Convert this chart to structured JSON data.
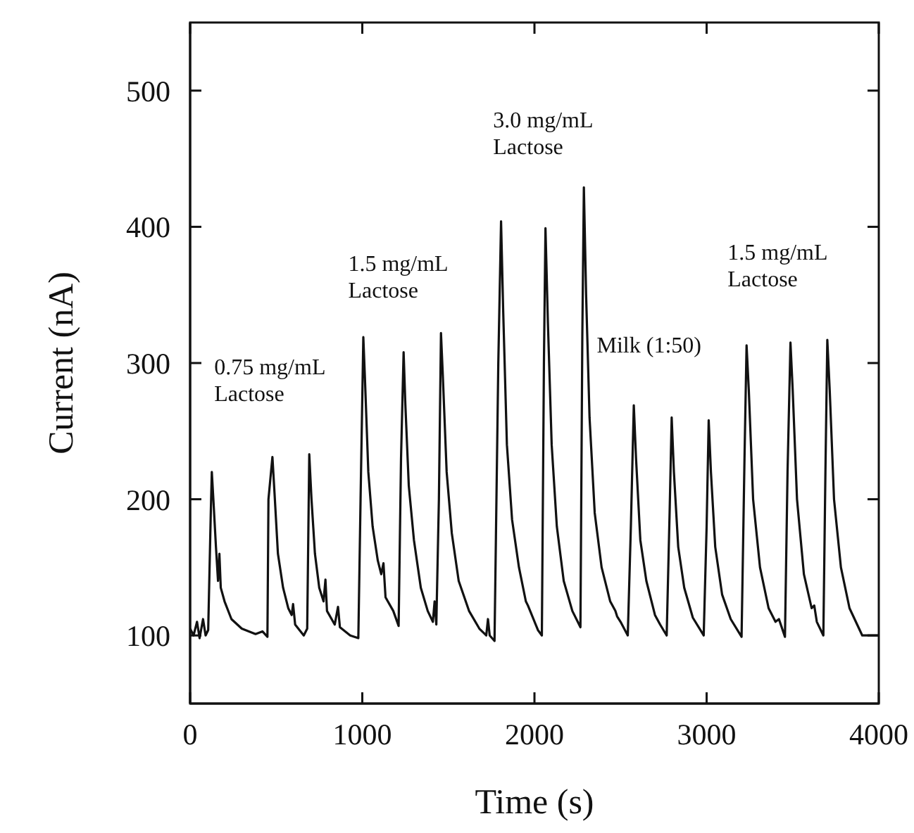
{
  "chart_data": {
    "type": "line",
    "xlabel": "Time (s)",
    "ylabel": "Current (nA)",
    "xlim": [
      0,
      4000
    ],
    "xticks": [
      0,
      1000,
      2000,
      3000,
      4000
    ],
    "ylim": [
      50,
      550
    ],
    "yticks": [
      100,
      200,
      300,
      400,
      500
    ],
    "grid": false,
    "legend": false,
    "marker": "none",
    "line_style": "solid",
    "series": [
      {
        "color": "#111111",
        "x": [
          0,
          20,
          40,
          55,
          75,
          90,
          105,
          120,
          126,
          135,
          150,
          162,
          170,
          178,
          200,
          240,
          300,
          380,
          420,
          449,
          455,
          478,
          490,
          510,
          540,
          570,
          590,
          598,
          610,
          660,
          680,
          692,
          705,
          725,
          750,
          775,
          786,
          795,
          840,
          859,
          870,
          930,
          977,
          990,
          1006,
          1015,
          1035,
          1060,
          1090,
          1110,
          1123,
          1135,
          1180,
          1211,
          1225,
          1240,
          1250,
          1270,
          1300,
          1340,
          1380,
          1410,
          1420,
          1430,
          1445,
          1457,
          1468,
          1490,
          1520,
          1560,
          1620,
          1680,
          1720,
          1730,
          1740,
          1768,
          1790,
          1806,
          1818,
          1840,
          1870,
          1910,
          1950,
          1962,
          1975,
          2020,
          2043,
          2055,
          2064,
          2078,
          2100,
          2130,
          2170,
          2220,
          2267,
          2278,
          2287,
          2300,
          2320,
          2350,
          2390,
          2440,
          2470,
          2480,
          2500,
          2542,
          2560,
          2577,
          2590,
          2615,
          2650,
          2700,
          2730,
          2768,
          2785,
          2797,
          2810,
          2835,
          2870,
          2920,
          2983,
          3000,
          3012,
          3025,
          3050,
          3090,
          3140,
          3203,
          3220,
          3232,
          3245,
          3270,
          3310,
          3360,
          3400,
          3420,
          3455,
          3470,
          3487,
          3500,
          3525,
          3565,
          3610,
          3625,
          3640,
          3678,
          3690,
          3701,
          3715,
          3740,
          3780,
          3830,
          3904,
          4000
        ],
        "values": [
          105,
          100,
          110,
          98,
          112,
          100,
          104,
          190,
          220,
          200,
          165,
          140,
          160,
          135,
          125,
          112,
          105,
          101,
          103,
          99,
          200,
          231,
          205,
          160,
          135,
          120,
          115,
          123,
          108,
          100,
          105,
          233,
          200,
          160,
          135,
          125,
          141,
          118,
          108,
          121,
          106,
          100,
          98,
          200,
          319,
          290,
          220,
          180,
          155,
          145,
          153,
          128,
          118,
          107,
          230,
          308,
          270,
          210,
          170,
          135,
          118,
          110,
          125,
          108,
          200,
          322,
          290,
          220,
          175,
          140,
          118,
          105,
          100,
          112,
          100,
          96,
          300,
          404,
          340,
          240,
          185,
          150,
          125,
          122,
          118,
          104,
          100,
          300,
          399,
          330,
          240,
          180,
          140,
          118,
          106,
          320,
          429,
          350,
          260,
          190,
          150,
          125,
          118,
          114,
          110,
          100,
          180,
          269,
          230,
          170,
          140,
          115,
          108,
          100,
          190,
          260,
          220,
          165,
          135,
          113,
          100,
          180,
          258,
          220,
          165,
          130,
          112,
          99,
          230,
          313,
          280,
          200,
          150,
          120,
          110,
          112,
          99,
          220,
          315,
          280,
          200,
          145,
          120,
          122,
          110,
          100,
          220,
          317,
          280,
          200,
          150,
          120,
          100,
          100
        ]
      }
    ],
    "annotations": [
      "0.75 mg/mL\nLactose",
      "1.5 mg/mL\nLactose",
      "3.0 mg/mL\nLactose",
      "Milk (1:50)",
      "1.5 mg/mL\nLactose"
    ]
  }
}
